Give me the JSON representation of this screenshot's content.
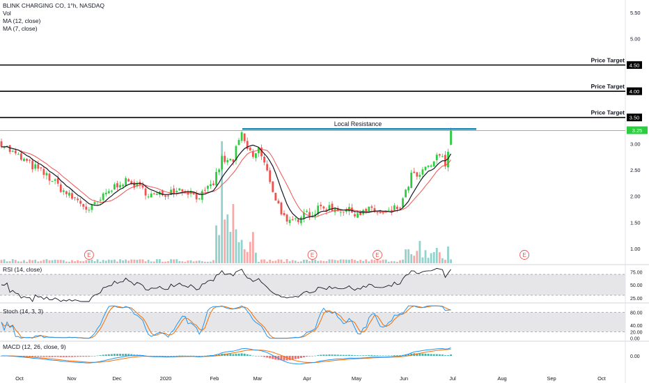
{
  "header": {
    "symbol_line": "BLINK CHARGING CO, 1°h, NASDAQ",
    "vol": "Vol",
    "ma12": "MA (12, close)",
    "ma7": "MA (7, close)"
  },
  "colors": {
    "up": "#26a69a",
    "up_bright": "#2ecc40",
    "down": "#ef5350",
    "ma_fast": "#131722",
    "ma_slow": "#ef5350",
    "resistance": "#1e88b5",
    "target_line": "#000000",
    "rsi_line": "#131722",
    "band_fill": "#e6e6e9",
    "macd_line": "#2196f3",
    "signal_line": "#ff6d00",
    "stoch_k": "#2196f3",
    "stoch_d": "#ef6c00"
  },
  "annotations": {
    "price_targets": [
      {
        "label": "Price Target",
        "price": "4.50",
        "value": 4.5
      },
      {
        "label": "Price Target",
        "price": "4.00",
        "value": 4.0
      },
      {
        "label": "Price Target",
        "price": "3.50",
        "value": 3.5
      }
    ],
    "local_resistance": {
      "label": "Local Resistance",
      "value": 3.28
    },
    "current_price_tag": "3.25",
    "earnings_marker": "E"
  },
  "chart_data": {
    "type": "candlestick",
    "price_axis": {
      "ticks": [
        "5.50",
        "5.00",
        "4.50",
        "4.00",
        "3.50",
        "3.00",
        "2.50",
        "2.00",
        "1.50",
        "1.00"
      ],
      "range": [
        0.72,
        5.74
      ]
    },
    "time_axis": {
      "ticks": [
        "Oct",
        "Nov",
        "Dec",
        "2020",
        "Feb",
        "Mar",
        "Apr",
        "May",
        "Jun",
        "Jul",
        "Aug",
        "Sep",
        "Oct"
      ]
    },
    "price_path": [
      [
        0,
        3.02
      ],
      [
        4,
        2.82
      ],
      [
        8,
        2.68
      ],
      [
        13,
        2.5
      ],
      [
        17,
        2.35
      ],
      [
        21,
        2.15
      ],
      [
        24,
        2.0
      ],
      [
        27,
        1.92
      ],
      [
        31,
        1.72
      ],
      [
        34,
        1.88
      ],
      [
        38,
        2.08
      ],
      [
        42,
        2.28
      ],
      [
        46,
        2.25
      ],
      [
        50,
        2.12
      ],
      [
        54,
        2.0
      ],
      [
        58,
        2.05
      ],
      [
        62,
        2.15
      ],
      [
        66,
        2.1
      ],
      [
        69,
        2.0
      ],
      [
        72,
        2.05
      ],
      [
        75,
        2.25
      ],
      [
        78,
        2.7
      ],
      [
        80,
        2.65
      ],
      [
        82,
        2.7
      ],
      [
        84,
        3.05
      ],
      [
        85,
        3.15
      ],
      [
        87,
        2.9
      ],
      [
        89,
        2.75
      ],
      [
        91,
        2.9
      ],
      [
        93,
        2.6
      ],
      [
        95,
        2.3
      ],
      [
        97,
        1.95
      ],
      [
        99,
        1.72
      ],
      [
        101,
        1.45
      ],
      [
        103,
        1.5
      ],
      [
        105,
        1.58
      ],
      [
        107,
        1.75
      ],
      [
        109,
        1.65
      ],
      [
        111,
        1.7
      ],
      [
        113,
        1.78
      ],
      [
        116,
        1.78
      ],
      [
        120,
        1.75
      ],
      [
        124,
        1.7
      ],
      [
        127,
        1.68
      ],
      [
        129,
        1.7
      ],
      [
        131,
        1.75
      ],
      [
        133,
        1.68
      ],
      [
        135,
        1.65
      ],
      [
        137,
        1.68
      ],
      [
        139,
        1.75
      ],
      [
        141,
        1.8
      ],
      [
        143,
        2.05
      ],
      [
        145,
        2.4
      ],
      [
        147,
        2.35
      ],
      [
        149,
        2.45
      ],
      [
        151,
        2.55
      ],
      [
        153,
        2.65
      ],
      [
        155,
        2.8
      ],
      [
        157,
        2.6
      ],
      [
        159,
        3.25
      ]
    ],
    "earnings_positions": [
      31,
      110,
      133,
      185
    ],
    "rsi": {
      "label": "RSI (14, close)",
      "ticks": [
        "75.00",
        "50.00",
        "25.00"
      ],
      "band": [
        30,
        70
      ],
      "range": [
        18,
        86
      ]
    },
    "stoch": {
      "label": "Stoch (14, 3, 3)",
      "ticks": [
        "80.00",
        "40.00",
        "20.00",
        "0.00"
      ],
      "band": [
        20,
        80
      ],
      "range": [
        -5,
        105
      ]
    },
    "macd": {
      "label": "MACD (12, 26, close, 9)",
      "ticks": [
        "0.00"
      ],
      "range": [
        -0.45,
        0.45
      ]
    }
  }
}
